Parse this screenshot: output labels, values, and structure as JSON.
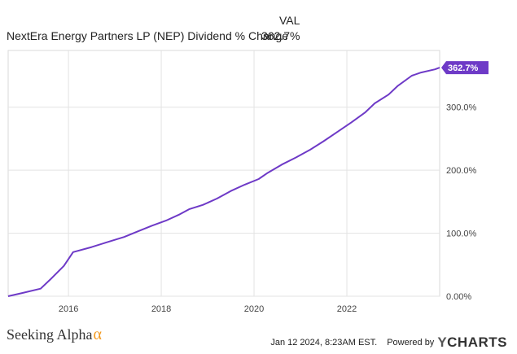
{
  "chart_data": {
    "type": "line",
    "title": "",
    "legend_header": "VAL",
    "series": [
      {
        "name": "NextEra Energy Partners LP (NEP) Dividend % Change",
        "color": "#6e3ac7",
        "last_value_label": "362.7%",
        "x": [
          2014.7,
          2015.0,
          2015.4,
          2015.6,
          2015.9,
          2016.1,
          2016.5,
          2016.8,
          2017.2,
          2017.5,
          2017.8,
          2018.1,
          2018.4,
          2018.6,
          2018.9,
          2019.2,
          2019.5,
          2019.8,
          2020.1,
          2020.3,
          2020.6,
          2020.9,
          2021.2,
          2021.5,
          2021.8,
          2022.1,
          2022.4,
          2022.6,
          2022.9,
          2023.1,
          2023.4,
          2023.6,
          2023.9,
          2024.0
        ],
        "values": [
          0,
          5,
          12,
          26,
          48,
          70,
          78,
          85,
          94,
          103,
          112,
          120,
          130,
          138,
          145,
          155,
          167,
          177,
          186,
          196,
          209,
          220,
          232,
          246,
          261,
          276,
          292,
          306,
          320,
          334,
          350,
          355,
          360,
          362.7
        ]
      }
    ],
    "x_ticks": [
      "2016",
      "2018",
      "2020",
      "2022"
    ],
    "x_tick_values": [
      2016,
      2018,
      2020,
      2022
    ],
    "y_ticks": [
      "0.00%",
      "100.0%",
      "200.0%",
      "300.0%"
    ],
    "y_tick_values": [
      0,
      100,
      200,
      300
    ],
    "xlim": [
      2014.7,
      2024.0
    ],
    "ylim": [
      0,
      390
    ],
    "grid": true
  },
  "footer": {
    "brand": "Seeking Alpha",
    "alpha_symbol": "α",
    "timestamp": "Jan 12 2024, 8:23AM EST.",
    "powered_by": "Powered by",
    "provider_y": "Y",
    "provider_rest": "CHARTS"
  }
}
